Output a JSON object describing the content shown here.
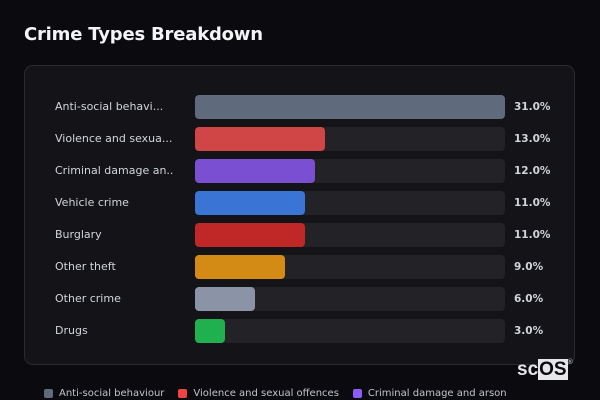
{
  "page": {
    "title": "Crime Types Breakdown"
  },
  "chart_data": {
    "type": "bar",
    "orientation": "horizontal",
    "title": "Crime Types Breakdown",
    "categories": [
      "Anti-social behaviour",
      "Violence and sexual offences",
      "Criminal damage and arson",
      "Vehicle crime",
      "Burglary",
      "Other theft",
      "Other crime",
      "Drugs"
    ],
    "display_labels": [
      "Anti-social behavi...",
      "Violence and sexua...",
      "Criminal damage an...",
      "Vehicle crime",
      "Burglary",
      "Other theft",
      "Other crime",
      "Drugs"
    ],
    "values": [
      31.0,
      13.0,
      12.0,
      11.0,
      11.0,
      9.0,
      6.0,
      3.0
    ],
    "value_labels": [
      "31.0%",
      "13.0%",
      "12.0%",
      "11.0%",
      "11.0%",
      "9.0%",
      "6.0%",
      "3.0%"
    ],
    "colors": [
      "#5f6b7c",
      "#d04545",
      "#7b4fd1",
      "#3a74d4",
      "#c02828",
      "#d38b16",
      "#8a94a6",
      "#21b04f"
    ],
    "xlabel": "",
    "ylabel": "",
    "xlim": [
      0,
      31
    ],
    "unit": "%",
    "grid": false,
    "legend_position": "bottom",
    "legend": [
      {
        "label": "Anti-social behaviour",
        "color": "#5f6b7c"
      },
      {
        "label": "Violence and sexual offences",
        "color": "#ef4444"
      },
      {
        "label": "Criminal damage and arson",
        "color": "#8b5cf6"
      }
    ]
  },
  "watermark": {
    "prefix": "sc",
    "box": "OS",
    "mark": "®"
  }
}
